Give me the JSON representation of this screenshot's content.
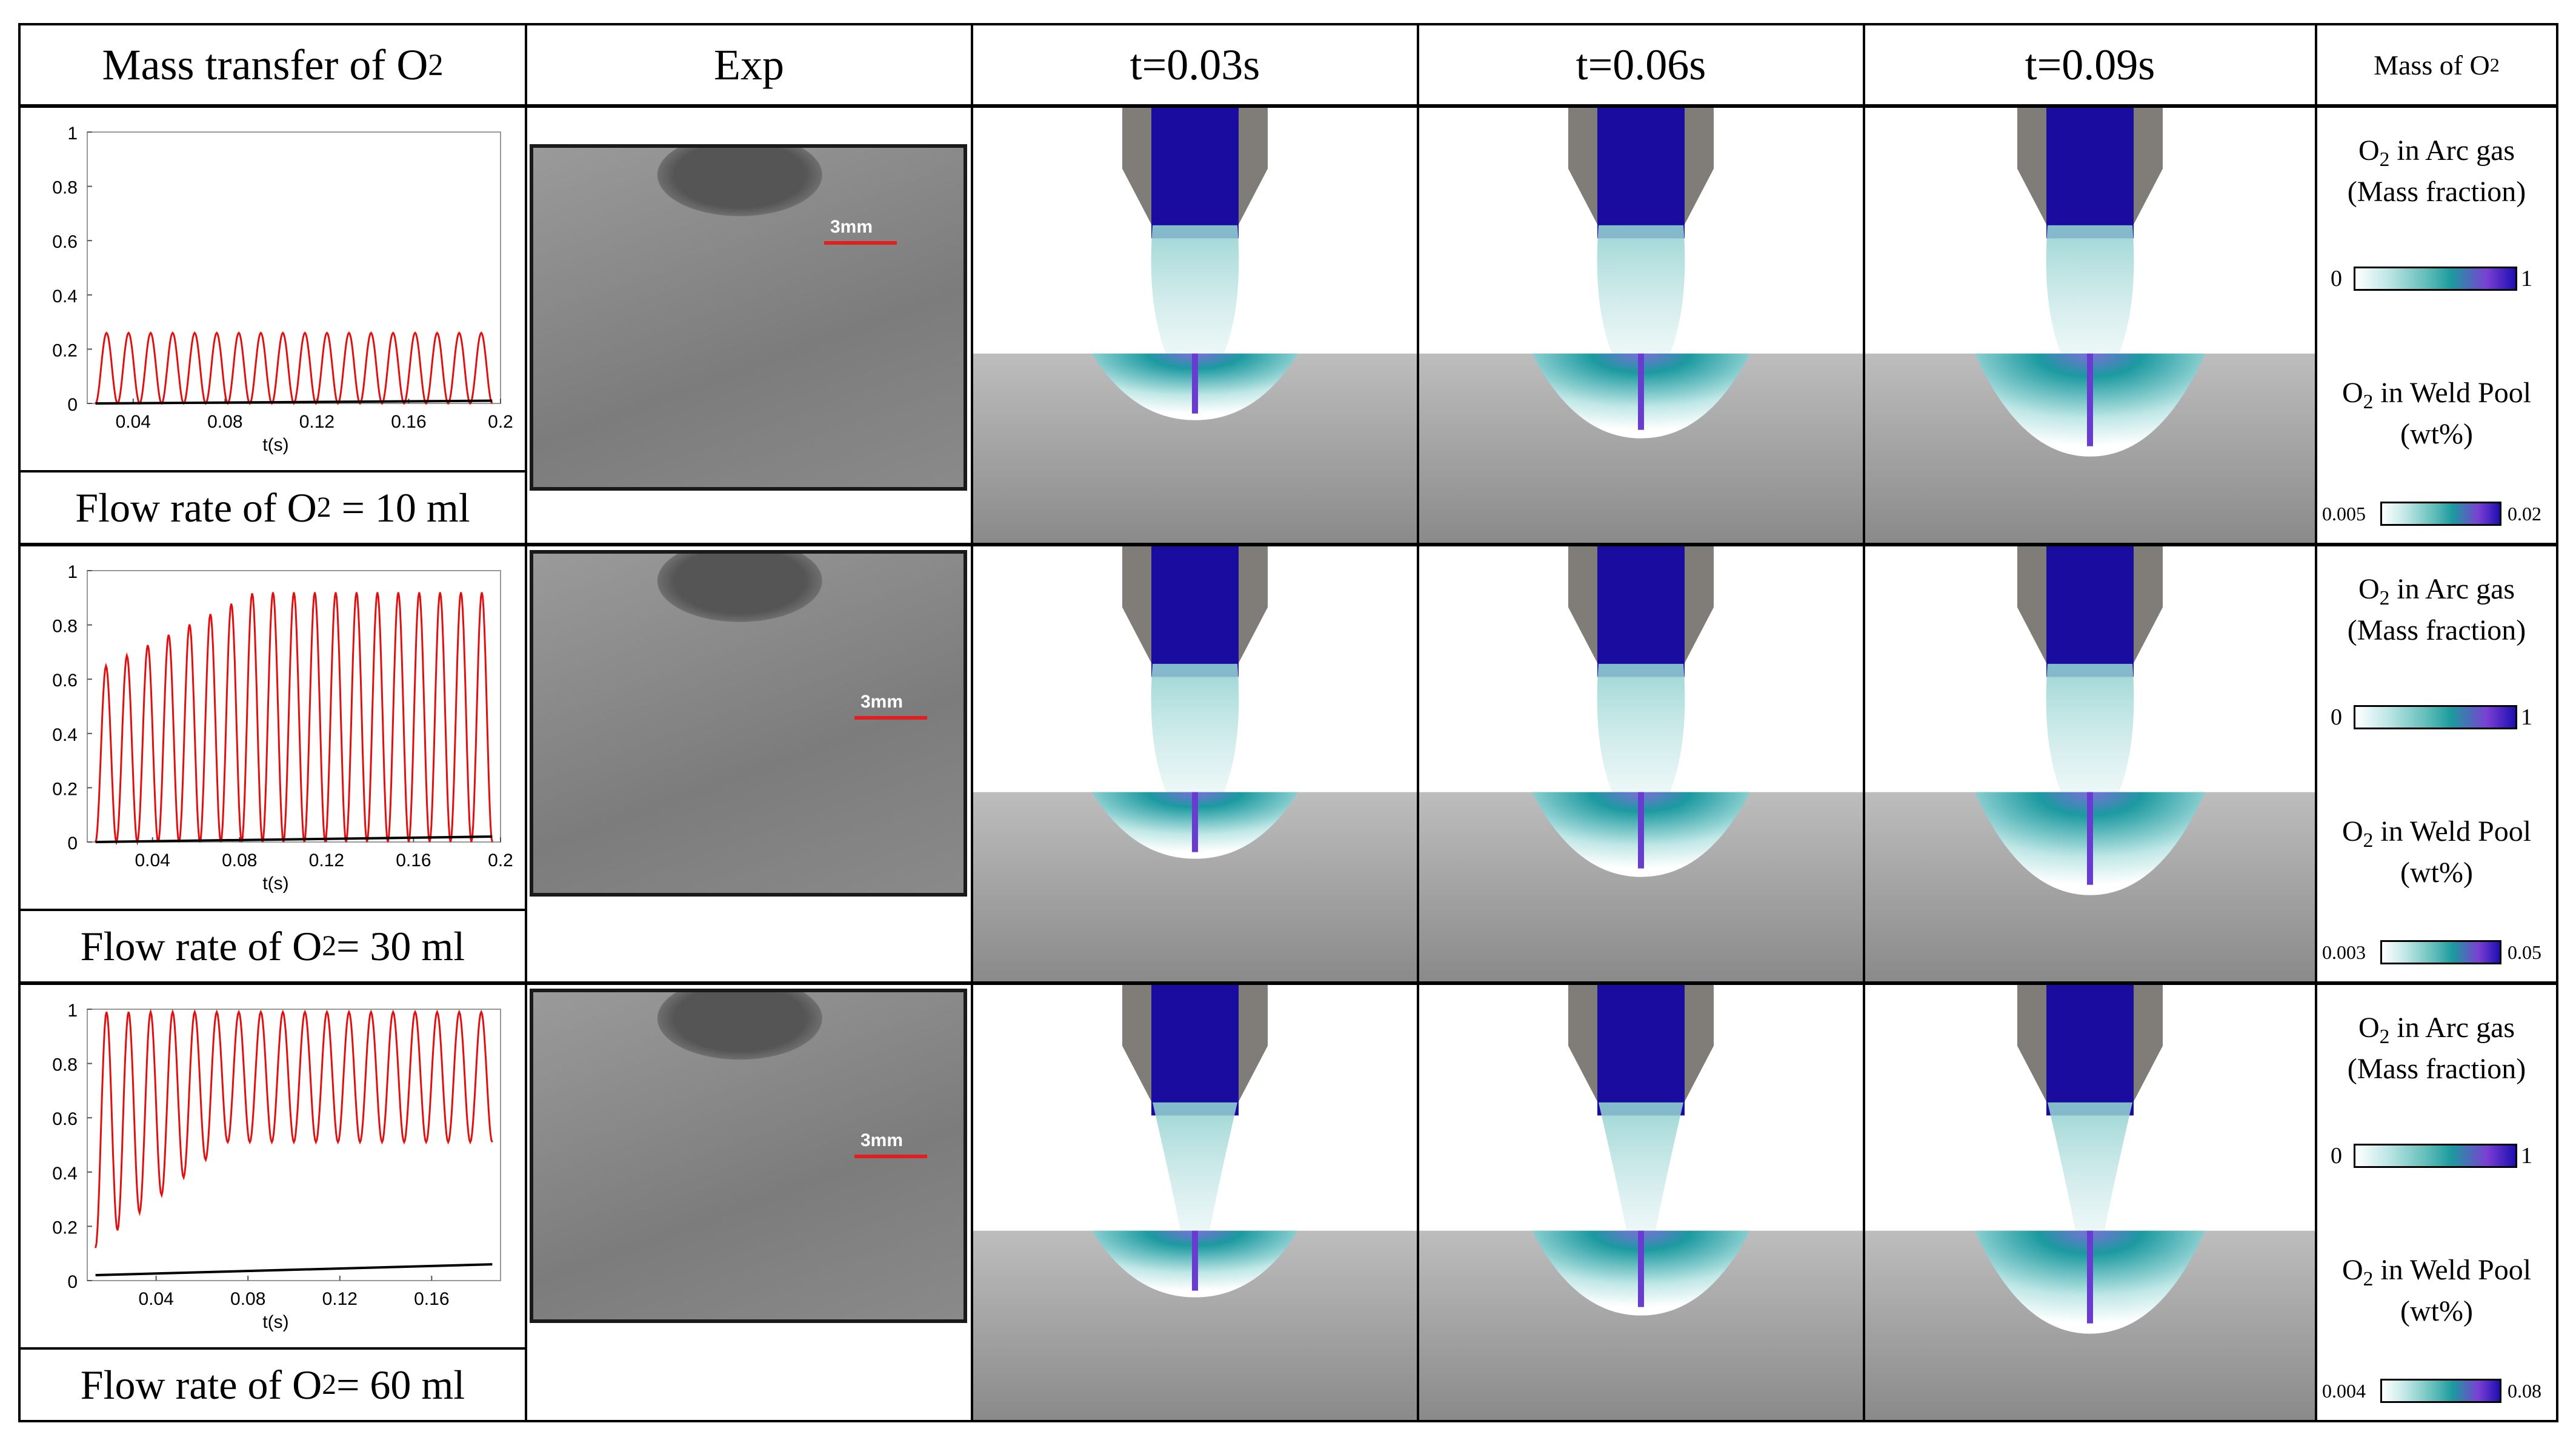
{
  "headers": {
    "col1": "Mass transfer of O",
    "col2": "Exp",
    "col3": "t=0.03s",
    "col4": "t=0.06s",
    "col5": "t=0.09s",
    "col6": "Mass of O"
  },
  "sub2": "2",
  "rows": [
    {
      "flow_label_prefix": "Flow rate of O",
      "flow_label_suffix": " = 10 ml",
      "scale_bar": "3mm",
      "arc_label_1": "O",
      "arc_label_1b": " in Arc gas",
      "arc_label_2": "(Mass fraction)",
      "arc_min": "0",
      "arc_max": "1",
      "pool_label_1": "O",
      "pool_label_1b": " in Weld Pool",
      "pool_label_2": "(wt%)",
      "pool_min": "0.005",
      "pool_max": "0.02"
    },
    {
      "flow_label_prefix": "Flow rate of O",
      "flow_label_suffix": "= 30 ml",
      "scale_bar": "3mm",
      "arc_label_1": "O",
      "arc_label_1b": " in Arc gas",
      "arc_label_2": "(Mass fraction)",
      "arc_min": "0",
      "arc_max": "1",
      "pool_label_1": "O",
      "pool_label_1b": " in Weld Pool",
      "pool_label_2": "(wt%)",
      "pool_min": "0.003",
      "pool_max": "0.05"
    },
    {
      "flow_label_prefix": "Flow rate of O",
      "flow_label_suffix": "= 60 ml",
      "scale_bar": "3mm",
      "arc_label_1": "O",
      "arc_label_1b": " in Arc gas",
      "arc_label_2": "(Mass fraction)",
      "arc_min": "0",
      "arc_max": "1",
      "pool_label_1": "O",
      "pool_label_1b": " in Weld Pool",
      "pool_label_2": "(wt%)",
      "pool_min": "0.004",
      "pool_max": "0.08"
    }
  ],
  "colors": {
    "red_series": "#e01010",
    "black_series": "#000000",
    "arc_blue": "#1b0ca0",
    "nozzle_gray": "#807c78"
  },
  "chart_data": [
    {
      "type": "line",
      "xlabel": "t(s)",
      "xlim": [
        0.02,
        0.2
      ],
      "ylim": [
        0,
        1
      ],
      "xticks": [
        "0.04",
        "0.08",
        "0.12",
        "0.16",
        "0.2"
      ],
      "yticks": [
        "0",
        "0.2",
        "0.4",
        "0.6",
        "0.8",
        "1"
      ],
      "series": [
        {
          "color": "red",
          "cycles": 18,
          "peak": 0.26,
          "trough": 0.0
        },
        {
          "color": "black",
          "values_start": 0.0,
          "values_end": 0.01
        }
      ]
    },
    {
      "type": "line",
      "xlabel": "t(s)",
      "xlim": [
        0.01,
        0.2
      ],
      "ylim": [
        0,
        1
      ],
      "xticks": [
        "0.04",
        "0.08",
        "0.12",
        "0.16",
        "0.2"
      ],
      "yticks": [
        "0",
        "0.2",
        "0.4",
        "0.6",
        "0.8",
        "1"
      ],
      "series": [
        {
          "color": "red",
          "cycles": 19,
          "peak_start": 0.63,
          "peak_end": 0.92,
          "trough": 0.0
        },
        {
          "color": "black",
          "values_start": 0.0,
          "values_end": 0.02
        }
      ]
    },
    {
      "type": "line",
      "xlabel": "t(s)",
      "xlim": [
        0.01,
        0.19
      ],
      "ylim": [
        0,
        1
      ],
      "xticks": [
        "0.04",
        "0.08",
        "0.12",
        "0.16"
      ],
      "yticks": [
        "0",
        "0.2",
        "0.4",
        "0.6",
        "0.8",
        "1"
      ],
      "series": [
        {
          "color": "red",
          "cycles": 18,
          "peak": 0.99,
          "trough_start": 0.12,
          "trough_end": 0.51
        },
        {
          "color": "black",
          "values_start": 0.02,
          "values_end": 0.06
        }
      ]
    }
  ]
}
